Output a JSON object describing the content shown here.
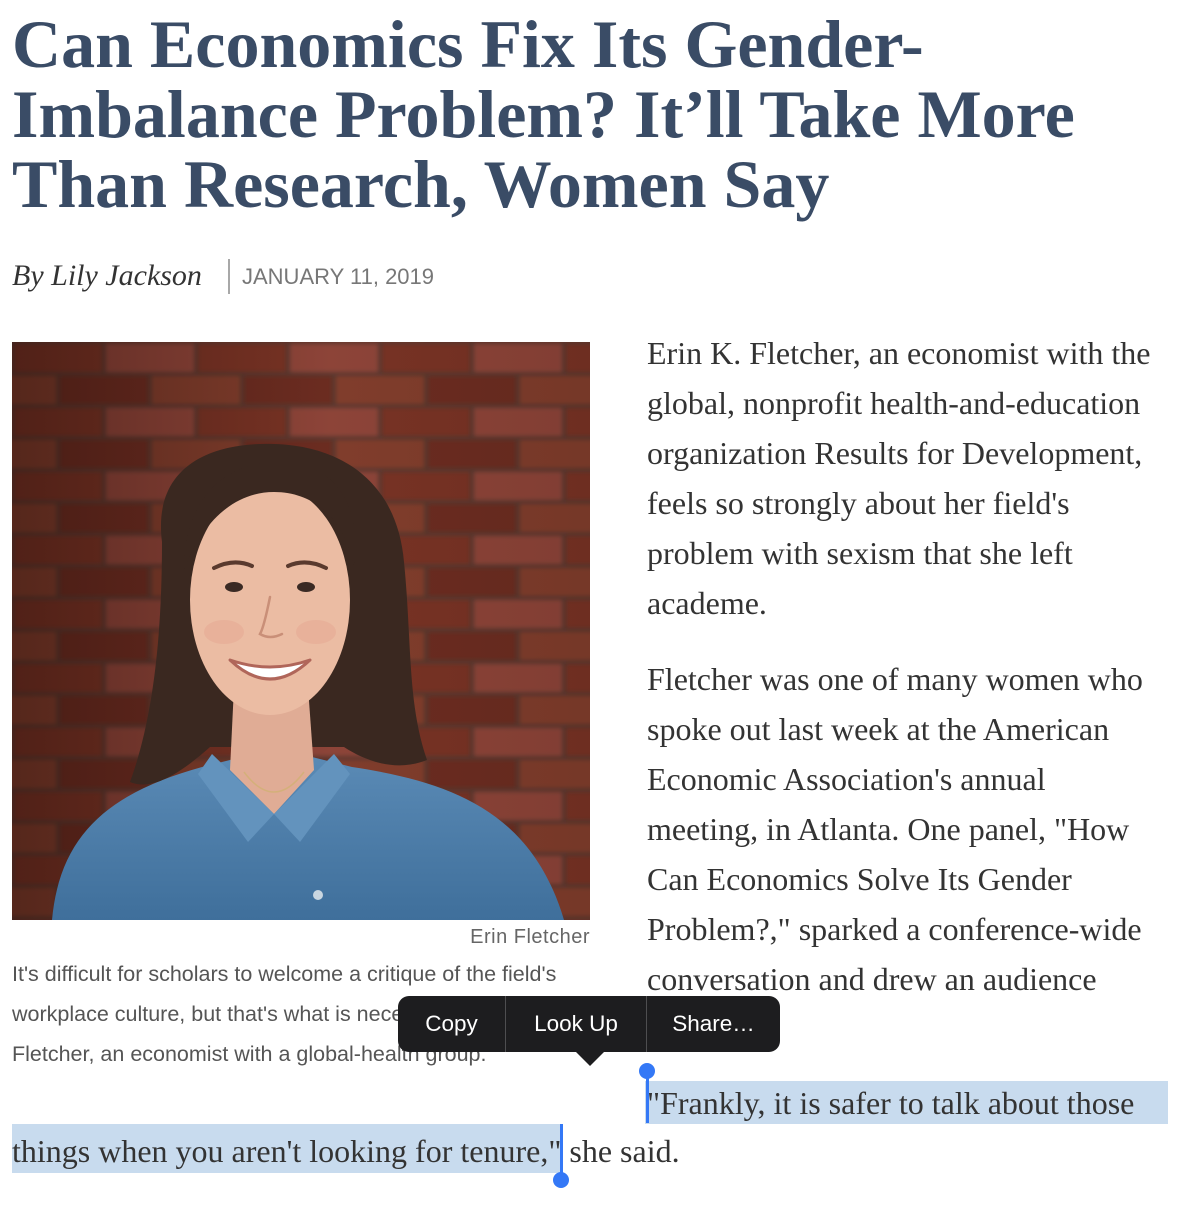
{
  "article": {
    "headline_lines": [
      "Can Economics Fix Its Gender-",
      "Imbalance Problem? It’ll Take More",
      "Than Research, Women Say"
    ],
    "byline": {
      "author": "By Lily Jackson",
      "date": "JANUARY 11, 2019"
    },
    "photo": {
      "credit": "Erin Fletcher",
      "caption_lines": [
        "It's difficult for scholars to welcome a critique of the field's",
        "workplace culture, but that's what is nece",
        "Fletcher, an economist with a global-health group."
      ]
    },
    "body": {
      "paragraphs": [
        {
          "lines": [
            "Erin K. Fletcher, an economist with the",
            "global, nonprofit health-and-education",
            "organization Results for Development,",
            "feels so strongly about her field's",
            "problem with sexism that she left",
            "academe."
          ]
        },
        {
          "lines": [
            "Fletcher was one of many women who",
            "spoke out last week at the American",
            "Economic Association's annual",
            "meeting, in Atlanta. One panel, \"How",
            "Can Economics Solve Its Gender",
            "Problem?,\" sparked a conference-wide",
            "conversation and drew an audience"
          ]
        }
      ],
      "quote": {
        "line_1": "\"Frankly, it is safer to talk about those",
        "line_2_selected": "things when you aren't looking for tenure,\"",
        "line_2_after": " she said."
      }
    }
  },
  "text_selection": {
    "menu_items": [
      {
        "label": "Copy"
      },
      {
        "label": "Look Up"
      },
      {
        "label": "Share…"
      }
    ]
  },
  "colors": {
    "headline": "#3a4c66",
    "body_text": "#333333",
    "meta_text": "#777777",
    "selection_highlight": "#c8dbee",
    "selection_handle": "#3478f6",
    "menu_background": "#1d1d1f"
  }
}
